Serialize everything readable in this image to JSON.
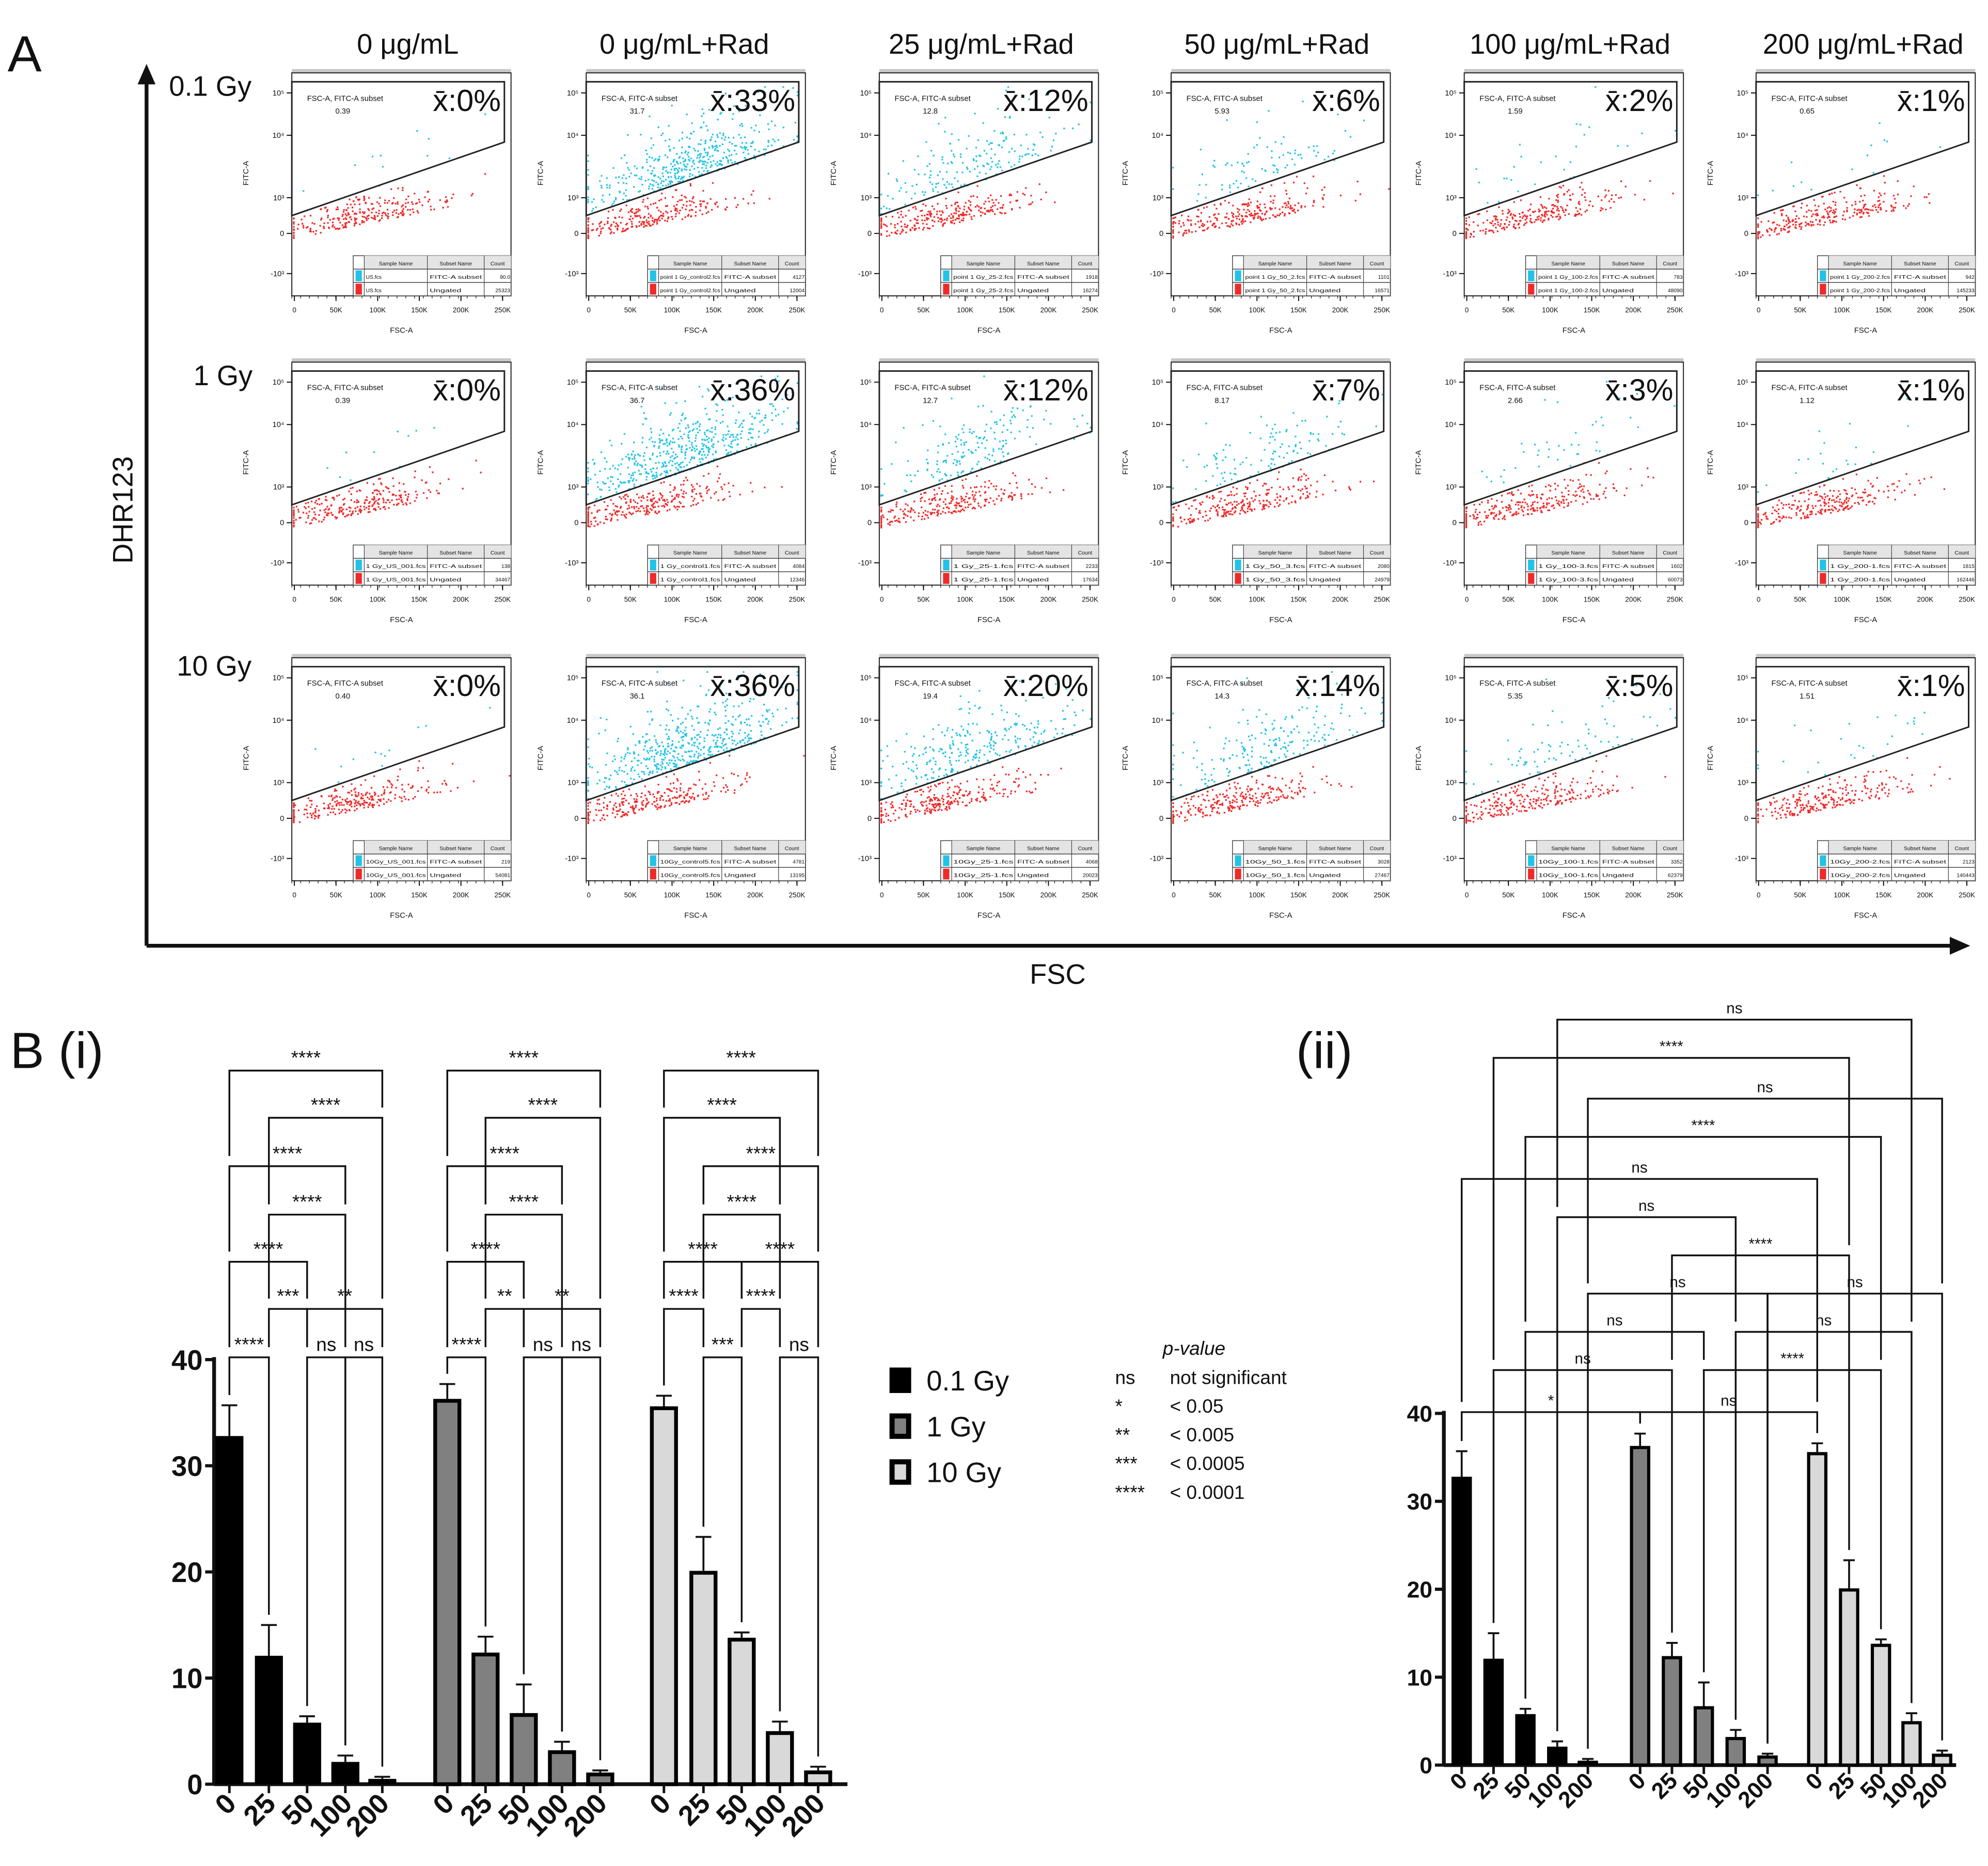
{
  "panel_a": {
    "label": "A",
    "y_axis_label": "DHR123",
    "x_axis_label": "FSC",
    "column_headers": [
      "0 μg/mL",
      "0 μg/mL+Rad",
      "25 μg/mL+Rad",
      "50 μg/mL+Rad",
      "100 μg/mL+Rad",
      "200 μg/mL+Rad"
    ],
    "row_labels": [
      "0.1 Gy",
      "1 Gy",
      "10 Gy"
    ],
    "plot_common": {
      "gate_label": "FSC-A, FITC-A subset",
      "x_label": "FSC-A",
      "y_label": "FITC-A",
      "x_ticks": [
        "0",
        "50K",
        "100K",
        "150K",
        "200K",
        "250K"
      ],
      "y_ticks": [
        "10⁵",
        "10⁴",
        "10³",
        "0",
        "-10³"
      ],
      "table_headers": [
        "Sample Name",
        "Subset Name",
        "Count"
      ],
      "subset_names": [
        "FITC-A subset",
        "Ungated"
      ],
      "gated_color": "#22c3e6",
      "ungated_color": "#ee2a2a",
      "mean_color": "#1a22d4"
    },
    "rows": [
      {
        "plots": [
          {
            "mean": "x̄:0%",
            "gate_value": "0.39",
            "gate_pct": 0.39,
            "sample": "US.fcs",
            "count_gated": "90.0",
            "count_ungated": "25323"
          },
          {
            "mean": "x̄:33%",
            "gate_value": "31.7",
            "gate_pct": 31.7,
            "sample": "point 1 Gy_control2.fcs",
            "count_gated": "4127",
            "count_ungated": "12004"
          },
          {
            "mean": "x̄:12%",
            "gate_value": "12.8",
            "gate_pct": 12.8,
            "sample": "point 1 Gy_25-2.fcs",
            "count_gated": "1918",
            "count_ungated": "16274"
          },
          {
            "mean": "x̄:6%",
            "gate_value": "5.93",
            "gate_pct": 5.93,
            "sample": "point 1 Gy_50_2.fcs",
            "count_gated": "1101",
            "count_ungated": "16571"
          },
          {
            "mean": "x̄:2%",
            "gate_value": "1.59",
            "gate_pct": 1.59,
            "sample": "point 1 Gy_100-2.fcs",
            "count_gated": "783",
            "count_ungated": "48090"
          },
          {
            "mean": "x̄:1%",
            "gate_value": "0.65",
            "gate_pct": 0.65,
            "sample": "point 1 Gy_200-2.fcs",
            "count_gated": "942",
            "count_ungated": "145233"
          }
        ]
      },
      {
        "plots": [
          {
            "mean": "x̄:0%",
            "gate_value": "0.39",
            "gate_pct": 0.39,
            "sample": "1 Gy_US_001.fcs",
            "count_gated": "138",
            "count_ungated": "34467"
          },
          {
            "mean": "x̄:36%",
            "gate_value": "36.7",
            "gate_pct": 36.7,
            "sample": "1 Gy_control1.fcs",
            "count_gated": "4084",
            "count_ungated": "12346"
          },
          {
            "mean": "x̄:12%",
            "gate_value": "12.7",
            "gate_pct": 12.7,
            "sample": "1 Gy_25-1.fcs",
            "count_gated": "2233",
            "count_ungated": "17634"
          },
          {
            "mean": "x̄:7%",
            "gate_value": "8.17",
            "gate_pct": 8.17,
            "sample": "1 Gy_50_3.fcs",
            "count_gated": "2080",
            "count_ungated": "24979"
          },
          {
            "mean": "x̄:3%",
            "gate_value": "2.66",
            "gate_pct": 2.66,
            "sample": "1 Gy_100-3.fcs",
            "count_gated": "1602",
            "count_ungated": "60073"
          },
          {
            "mean": "x̄:1%",
            "gate_value": "1.12",
            "gate_pct": 1.12,
            "sample": "1 Gy_200-1.fcs",
            "count_gated": "1815",
            "count_ungated": "162446"
          }
        ]
      },
      {
        "plots": [
          {
            "mean": "x̄:0%",
            "gate_value": "0.40",
            "gate_pct": 0.4,
            "sample": "10Gy_US_001.fcs",
            "count_gated": "219",
            "count_ungated": "54081"
          },
          {
            "mean": "x̄:36%",
            "gate_value": "36.1",
            "gate_pct": 36.1,
            "sample": "10Gy_control5.fcs",
            "count_gated": "4781",
            "count_ungated": "13195"
          },
          {
            "mean": "x̄:20%",
            "gate_value": "19.4",
            "gate_pct": 19.4,
            "sample": "10Gy_25-1.fcs",
            "count_gated": "4068",
            "count_ungated": "20023"
          },
          {
            "mean": "x̄:14%",
            "gate_value": "14.3",
            "gate_pct": 14.3,
            "sample": "10Gy_50_1.fcs",
            "count_gated": "3028",
            "count_ungated": "27467"
          },
          {
            "mean": "x̄:5%",
            "gate_value": "5.35",
            "gate_pct": 5.35,
            "sample": "10Gy_100-1.fcs",
            "count_gated": "3352",
            "count_ungated": "62379"
          },
          {
            "mean": "x̄:1%",
            "gate_value": "1.51",
            "gate_pct": 1.51,
            "sample": "10Gy_200-2.fcs",
            "count_gated": "2123",
            "count_ungated": "140443"
          }
        ]
      }
    ]
  },
  "legend": {
    "items": [
      {
        "label": "0.1 Gy",
        "fill": "#000000"
      },
      {
        "label": "1 Gy",
        "fill": "#808080"
      },
      {
        "label": "10 Gy",
        "fill": "#d9d9d9"
      }
    ],
    "pvalue_title": "p-value",
    "pvalue_rows": [
      {
        "symbol": "ns",
        "meaning": "not significant"
      },
      {
        "symbol": "*",
        "meaning": "< 0.05"
      },
      {
        "symbol": "**",
        "meaning": "< 0.005"
      },
      {
        "symbol": "***",
        "meaning": "< 0.0005"
      },
      {
        "symbol": "****",
        "meaning": "< 0.0001"
      }
    ]
  },
  "chart_data": [
    {
      "type": "bar",
      "title": "B (i)",
      "xlabel": "",
      "ylabel": "",
      "ylim": [
        0,
        40
      ],
      "yticks": [
        "0",
        "10",
        "20",
        "30",
        "40"
      ],
      "categories": [
        "0",
        "25",
        "50",
        "100",
        "200"
      ],
      "series": [
        {
          "name": "0.1 Gy",
          "color": "#000000",
          "values": [
            32.8,
            12.1,
            5.8,
            2.1,
            0.5
          ],
          "errors": [
            2.9,
            2.9,
            0.6,
            0.6,
            0.2
          ],
          "comparisons": [
            {
              "pair": [
                0,
                1
              ],
              "label": "****",
              "level": 0
            },
            {
              "pair": [
                2,
                3
              ],
              "label": "ns",
              "level": 0
            },
            {
              "pair": [
                3,
                4
              ],
              "label": "ns",
              "level": 0
            },
            {
              "pair": [
                1,
                2
              ],
              "label": "***",
              "level": 1
            },
            {
              "pair": [
                2,
                4
              ],
              "label": "**",
              "level": 1
            },
            {
              "pair": [
                0,
                2
              ],
              "label": "****",
              "level": 2
            },
            {
              "pair": [
                1,
                3
              ],
              "label": "****",
              "level": 3
            },
            {
              "pair": [
                0,
                3
              ],
              "label": "****",
              "level": 4
            },
            {
              "pair": [
                1,
                4
              ],
              "label": "****",
              "level": 5
            },
            {
              "pair": [
                0,
                4
              ],
              "label": "****",
              "level": 6
            }
          ]
        },
        {
          "name": "1 Gy",
          "color": "#808080",
          "values": [
            36.3,
            12.4,
            6.7,
            3.2,
            1.1
          ],
          "errors": [
            1.4,
            1.5,
            2.7,
            0.8,
            0.2
          ],
          "comparisons": [
            {
              "pair": [
                0,
                1
              ],
              "label": "****",
              "level": 0
            },
            {
              "pair": [
                2,
                3
              ],
              "label": "ns",
              "level": 0
            },
            {
              "pair": [
                3,
                4
              ],
              "label": "ns",
              "level": 0
            },
            {
              "pair": [
                1,
                2
              ],
              "label": "**",
              "level": 1
            },
            {
              "pair": [
                2,
                4
              ],
              "label": "**",
              "level": 1
            },
            {
              "pair": [
                0,
                2
              ],
              "label": "****",
              "level": 2
            },
            {
              "pair": [
                1,
                3
              ],
              "label": "****",
              "level": 3
            },
            {
              "pair": [
                0,
                3
              ],
              "label": "****",
              "level": 4
            },
            {
              "pair": [
                1,
                4
              ],
              "label": "****",
              "level": 5
            },
            {
              "pair": [
                0,
                4
              ],
              "label": "****",
              "level": 6
            }
          ]
        },
        {
          "name": "10 Gy",
          "color": "#d9d9d9",
          "values": [
            35.6,
            20.1,
            13.8,
            5.0,
            1.3
          ],
          "errors": [
            1.0,
            3.2,
            0.5,
            0.9,
            0.35
          ],
          "comparisons": [
            {
              "pair": [
                1,
                2
              ],
              "label": "***",
              "level": 0
            },
            {
              "pair": [
                3,
                4
              ],
              "label": "ns",
              "level": 0
            },
            {
              "pair": [
                0,
                1
              ],
              "label": "****",
              "level": 1
            },
            {
              "pair": [
                2,
                3
              ],
              "label": "****",
              "level": 1
            },
            {
              "pair": [
                0,
                2
              ],
              "label": "****",
              "level": 2
            },
            {
              "pair": [
                2,
                4
              ],
              "label": "****",
              "level": 2
            },
            {
              "pair": [
                1,
                3
              ],
              "label": "****",
              "level": 3
            },
            {
              "pair": [
                1,
                4
              ],
              "label": "****",
              "level": 4
            },
            {
              "pair": [
                0,
                3
              ],
              "label": "****",
              "level": 5
            },
            {
              "pair": [
                0,
                4
              ],
              "label": "****",
              "level": 6
            }
          ]
        }
      ]
    },
    {
      "type": "bar",
      "title": "(ii)",
      "xlabel": "",
      "ylabel": "",
      "ylim": [
        0,
        40
      ],
      "yticks": [
        "0",
        "10",
        "20",
        "30",
        "40"
      ],
      "categories": [
        "0",
        "25",
        "50",
        "100",
        "200"
      ],
      "series_ref": [
        "0.1 Gy",
        "1 Gy",
        "10 Gy"
      ],
      "comparisons": [
        {
          "a": [
            0,
            0
          ],
          "b": [
            1,
            0
          ],
          "label": "*",
          "level": 0
        },
        {
          "a": [
            1,
            0
          ],
          "b": [
            2,
            0
          ],
          "label": "ns",
          "level": 0
        },
        {
          "a": [
            0,
            1
          ],
          "b": [
            1,
            1
          ],
          "label": "ns",
          "level": 1
        },
        {
          "a": [
            1,
            2
          ],
          "b": [
            2,
            2
          ],
          "label": "****",
          "level": 1
        },
        {
          "a": [
            0,
            2
          ],
          "b": [
            1,
            2
          ],
          "label": "ns",
          "level": 2
        },
        {
          "a": [
            1,
            3
          ],
          "b": [
            2,
            3
          ],
          "label": "ns",
          "level": 2
        },
        {
          "a": [
            0,
            4
          ],
          "b": [
            1,
            4
          ],
          "label": "ns",
          "level": 3
        },
        {
          "a": [
            1,
            4
          ],
          "b": [
            2,
            4
          ],
          "label": "ns",
          "level": 3
        },
        {
          "a": [
            1,
            1
          ],
          "b": [
            2,
            1
          ],
          "label": "****",
          "level": 4
        },
        {
          "a": [
            0,
            3
          ],
          "b": [
            1,
            3
          ],
          "label": "ns",
          "level": 5
        },
        {
          "a": [
            0,
            0
          ],
          "b": [
            2,
            0
          ],
          "label": "ns",
          "level": 6
        },
        {
          "a": [
            0,
            2
          ],
          "b": [
            2,
            2
          ],
          "label": "****",
          "level": 7
        },
        {
          "a": [
            0,
            4
          ],
          "b": [
            2,
            4
          ],
          "label": "ns",
          "level": 8
        },
        {
          "a": [
            0,
            1
          ],
          "b": [
            2,
            1
          ],
          "label": "****",
          "level": 9
        },
        {
          "a": [
            0,
            3
          ],
          "b": [
            2,
            3
          ],
          "label": "ns",
          "level": 10
        }
      ]
    }
  ]
}
